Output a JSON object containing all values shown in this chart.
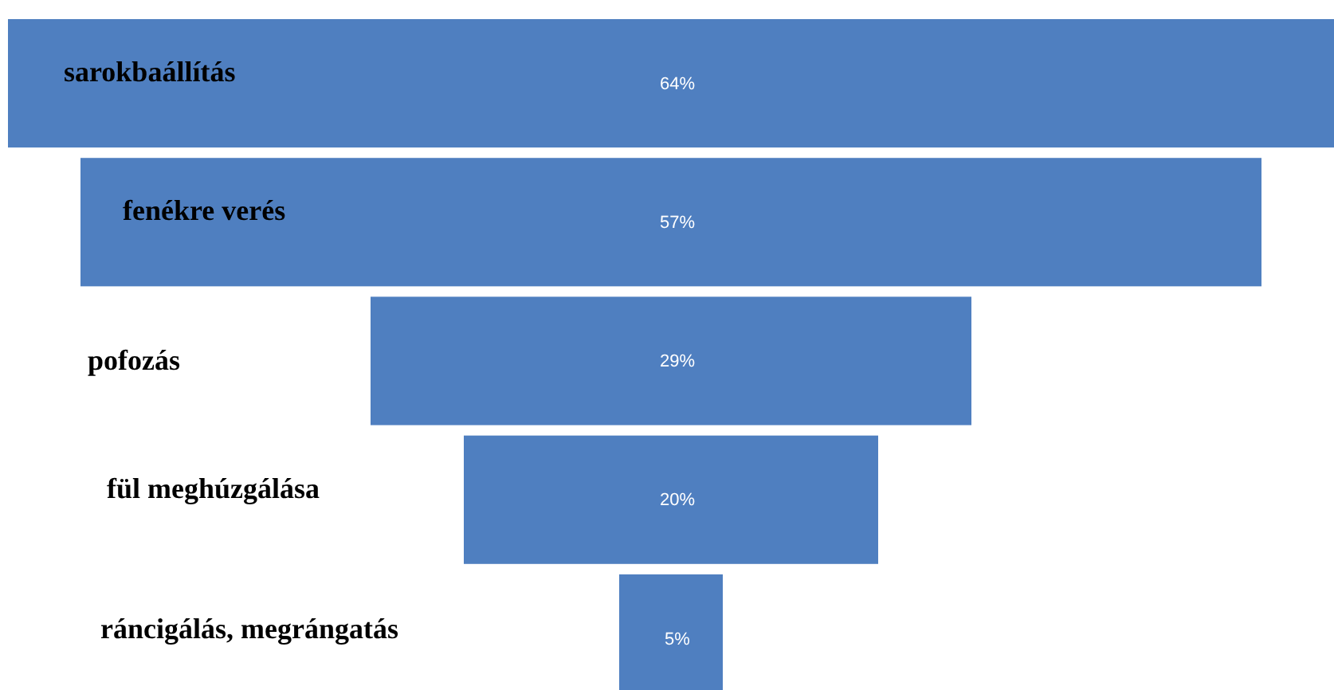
{
  "chart_data": {
    "type": "other",
    "categories": [
      "sarokbaállítás",
      "fenékre verés",
      "pofozás",
      "fül meghúzgálása",
      "ráncigálás, megrángatás"
    ],
    "values": [
      64,
      57,
      29,
      20,
      5
    ],
    "value_labels": [
      "64%",
      "57%",
      "29%",
      "20%",
      "5%"
    ],
    "color": "#4f7fc0",
    "data_labels": true
  }
}
